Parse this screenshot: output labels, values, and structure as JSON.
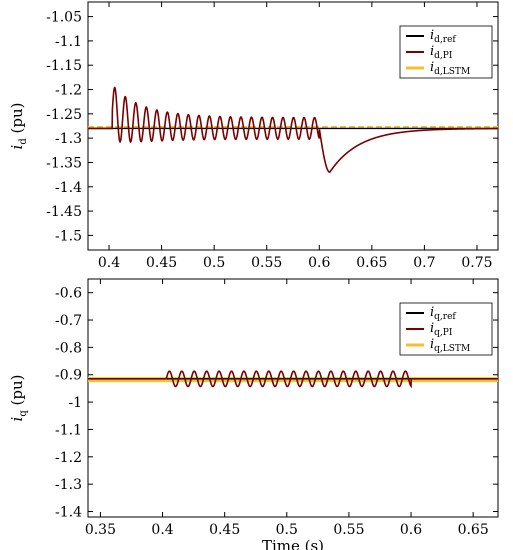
{
  "colors": {
    "ref": "#000000",
    "pi": "#7a0000",
    "lstm": "#f5c12a"
  },
  "chart_data": [
    {
      "type": "line",
      "ylabel_main": "i",
      "ylabel_sub": "d",
      "ylabel_unit": " (pu)",
      "xlabel": "",
      "xlim": [
        0.38,
        0.77
      ],
      "ylim": [
        -1.53,
        -1.02
      ],
      "xticks": [
        0.4,
        0.45,
        0.5,
        0.55,
        0.6,
        0.65,
        0.7,
        0.75
      ],
      "xtick_labels": [
        "0.4",
        "0.45",
        "0.5",
        "0.55",
        "0.6",
        "0.65",
        "0.7",
        "0.75"
      ],
      "yticks": [
        -1.05,
        -1.1,
        -1.15,
        -1.2,
        -1.25,
        -1.3,
        -1.35,
        -1.4,
        -1.45,
        -1.5
      ],
      "ytick_labels": [
        "-1.05",
        "-1.1",
        "-1.15",
        "-1.2",
        "-1.25",
        "-1.3",
        "-1.35",
        "-1.4",
        "-1.45",
        "-1.5"
      ],
      "legend_position": "top-right",
      "series": [
        {
          "key": "ref",
          "name_main": "i",
          "name_sub": "d,ref",
          "kind": "constant",
          "value": -1.28
        },
        {
          "key": "pi",
          "name_main": "i",
          "name_sub": "d,PI",
          "kind": "osc_then_dip",
          "base": -1.28,
          "osc_start": 0.403,
          "osc_end": 0.6,
          "freq_hz": 100,
          "amp_peak": 0.058,
          "amp_floor": 0.022,
          "dip_min": -1.37,
          "dip_time": 0.61,
          "recover_time": 0.7
        },
        {
          "key": "lstm",
          "name_main": "i",
          "name_sub": "d,LSTM",
          "kind": "constant",
          "value": -1.278
        }
      ]
    },
    {
      "type": "line",
      "ylabel_main": "i",
      "ylabel_sub": "q",
      "ylabel_unit": " (pu)",
      "xlabel": "Time (s)",
      "xlim": [
        0.34,
        0.67
      ],
      "ylim": [
        -1.42,
        -0.55
      ],
      "xticks": [
        0.35,
        0.4,
        0.45,
        0.5,
        0.55,
        0.6,
        0.65
      ],
      "xtick_labels": [
        "0.35",
        "0.4",
        "0.45",
        "0.5",
        "0.55",
        "0.6",
        "0.65"
      ],
      "yticks": [
        -0.6,
        -0.7,
        -0.8,
        -0.9,
        -1,
        -1.1,
        -1.2,
        -1.3,
        -1.4
      ],
      "ytick_labels": [
        "-0.6",
        "-0.7",
        "-0.8",
        "-0.9",
        "-1",
        "-1.1",
        "-1.2",
        "-1.3",
        "-1.4"
      ],
      "legend_position": "top-right",
      "series": [
        {
          "key": "ref",
          "name_main": "i",
          "name_sub": "q,ref",
          "kind": "constant",
          "value": -0.915
        },
        {
          "key": "pi",
          "name_main": "i",
          "name_sub": "q,PI",
          "kind": "osc",
          "base": -0.915,
          "osc_start": 0.403,
          "osc_end": 0.6,
          "freq_hz": 100,
          "amp_peak": 0.028,
          "amp_floor": 0.028
        },
        {
          "key": "lstm",
          "name_main": "i",
          "name_sub": "q,LSTM",
          "kind": "constant",
          "value": -0.918
        }
      ]
    }
  ]
}
